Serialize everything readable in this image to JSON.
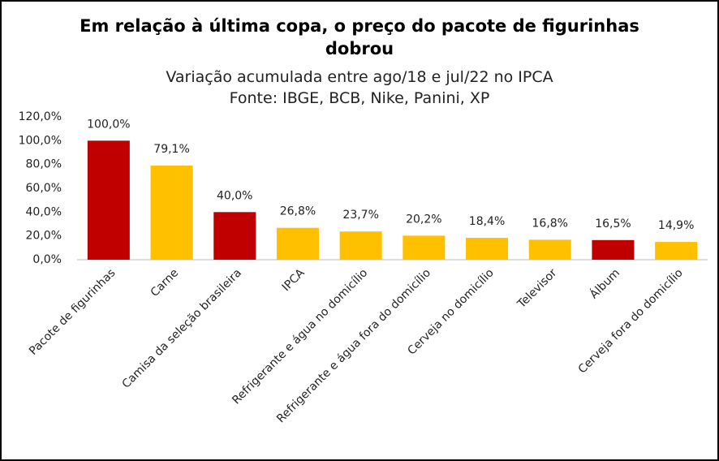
{
  "chart_data": {
    "type": "bar",
    "title": "Em relação à última copa, o preço do pacote de figurinhas dobrou",
    "subtitle": "Variação acumulada entre ago/18 e jul/22 no IPCA",
    "source": "Fonte: IBGE, BCB, Nike, Panini, XP",
    "categories": [
      "Pacote de figurinhas",
      "Carne",
      "Camisa da seleção brasileira",
      "IPCA",
      "Refrigerante e água no domicílio",
      "Refrigerante e água fora do domicílio",
      "Cerveja no domicílio",
      "Televisor",
      "Álbum",
      "Cerveja fora do domicílio"
    ],
    "values": [
      100.0,
      79.1,
      40.0,
      26.8,
      23.7,
      20.2,
      18.4,
      16.8,
      16.5,
      14.9
    ],
    "value_labels": [
      "100,0%",
      "79,1%",
      "40,0%",
      "26,8%",
      "23,7%",
      "20,2%",
      "18,4%",
      "16,8%",
      "16,5%",
      "14,9%"
    ],
    "colors": [
      "#c00000",
      "#ffc000",
      "#c00000",
      "#ffc000",
      "#ffc000",
      "#ffc000",
      "#ffc000",
      "#ffc000",
      "#c00000",
      "#ffc000"
    ],
    "ylim": [
      0,
      120
    ],
    "yticks": [
      {
        "value": 0,
        "label": "0,0%"
      },
      {
        "value": 20,
        "label": "20,0%"
      },
      {
        "value": 40,
        "label": "40,0%"
      },
      {
        "value": 60,
        "label": "60,0%"
      },
      {
        "value": 80,
        "label": "80,0%"
      },
      {
        "value": 100,
        "label": "100,0%"
      },
      {
        "value": 120,
        "label": "120,0%"
      }
    ],
    "grid": false
  }
}
